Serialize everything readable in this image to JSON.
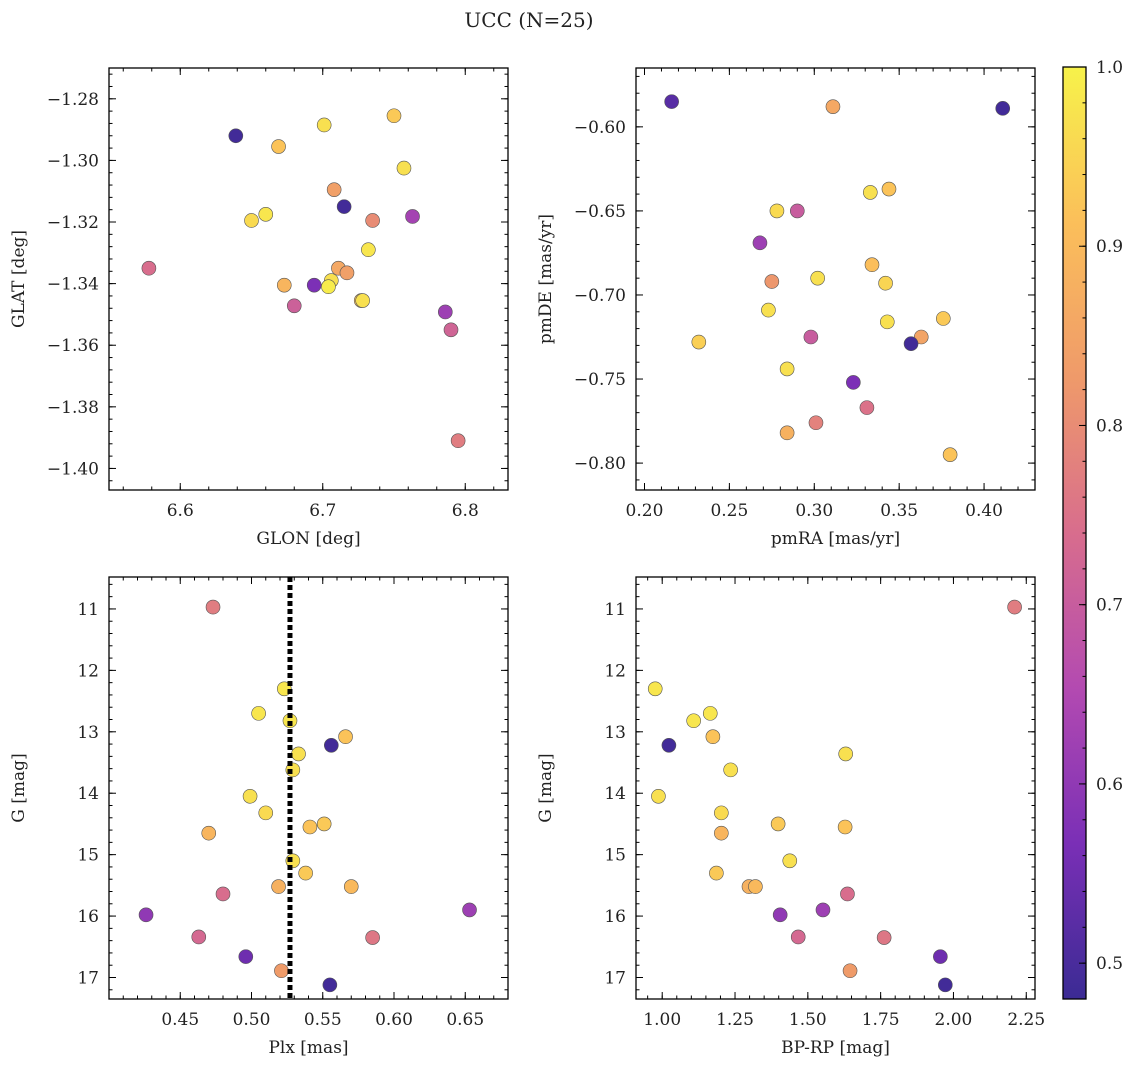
{
  "figure": {
    "title": "UCC (N=25)"
  },
  "colorbar": {
    "min": 0.48,
    "max": 1.0,
    "ticks": [
      0.5,
      0.6,
      0.7,
      0.8,
      0.9,
      1.0
    ],
    "tick_labels": [
      "0.5",
      "0.6",
      "0.7",
      "0.8",
      "0.9",
      "1.0"
    ],
    "colormap": "plasma",
    "colors": [
      "#3b2b94",
      "#7a2fb6",
      "#b34ab1",
      "#d86d8d",
      "#ef9a6a",
      "#fbbf5a",
      "#f7f24a"
    ]
  },
  "chart_data": [
    {
      "type": "scatter",
      "xlabel": "GLON [deg]",
      "ylabel": "GLAT [deg]",
      "xlim": [
        6.55,
        6.83
      ],
      "ylim": [
        -1.407,
        -1.27
      ],
      "xticks": [
        6.6,
        6.7,
        6.8
      ],
      "xtick_labels": [
        "6.6",
        "6.7",
        "6.8"
      ],
      "yticks": [
        -1.28,
        -1.3,
        -1.32,
        -1.34,
        -1.36,
        -1.38,
        -1.4
      ],
      "ytick_labels": [
        "−1.28",
        "−1.30",
        "−1.32",
        "−1.34",
        "−1.36",
        "−1.38",
        "−1.40"
      ],
      "y_inverted": false,
      "points": [
        {
          "x": 6.639,
          "y": -1.292,
          "c": 0.49
        },
        {
          "x": 6.669,
          "y": -1.2955,
          "c": 0.92
        },
        {
          "x": 6.701,
          "y": -1.2885,
          "c": 0.97
        },
        {
          "x": 6.75,
          "y": -1.2855,
          "c": 0.93
        },
        {
          "x": 6.757,
          "y": -1.3025,
          "c": 0.97
        },
        {
          "x": 6.708,
          "y": -1.3095,
          "c": 0.84
        },
        {
          "x": 6.715,
          "y": -1.315,
          "c": 0.49
        },
        {
          "x": 6.66,
          "y": -1.3175,
          "c": 0.98
        },
        {
          "x": 6.65,
          "y": -1.3195,
          "c": 0.96
        },
        {
          "x": 6.735,
          "y": -1.3195,
          "c": 0.8
        },
        {
          "x": 6.763,
          "y": -1.3182,
          "c": 0.63
        },
        {
          "x": 6.732,
          "y": -1.329,
          "c": 0.98
        },
        {
          "x": 6.578,
          "y": -1.335,
          "c": 0.74
        },
        {
          "x": 6.711,
          "y": -1.335,
          "c": 0.86
        },
        {
          "x": 6.717,
          "y": -1.3365,
          "c": 0.84
        },
        {
          "x": 6.706,
          "y": -1.339,
          "c": 0.97
        },
        {
          "x": 6.694,
          "y": -1.3405,
          "c": 0.57
        },
        {
          "x": 6.673,
          "y": -1.3405,
          "c": 0.89
        },
        {
          "x": 6.704,
          "y": -1.341,
          "c": 0.99
        },
        {
          "x": 6.727,
          "y": -1.3455,
          "c": 0.92
        },
        {
          "x": 6.728,
          "y": -1.3455,
          "c": 0.97
        },
        {
          "x": 6.68,
          "y": -1.3472,
          "c": 0.71
        },
        {
          "x": 6.786,
          "y": -1.3492,
          "c": 0.62
        },
        {
          "x": 6.79,
          "y": -1.355,
          "c": 0.72
        },
        {
          "x": 6.795,
          "y": -1.391,
          "c": 0.77
        }
      ]
    },
    {
      "type": "scatter",
      "xlabel": "pmRA [mas/yr]",
      "ylabel": "pmDE [mas/yr]",
      "xlim": [
        0.195,
        0.43
      ],
      "ylim": [
        -0.816,
        -0.565
      ],
      "xticks": [
        0.2,
        0.25,
        0.3,
        0.35,
        0.4
      ],
      "xtick_labels": [
        "0.20",
        "0.25",
        "0.30",
        "0.35",
        "0.40"
      ],
      "yticks": [
        -0.6,
        -0.65,
        -0.7,
        -0.75,
        -0.8
      ],
      "ytick_labels": [
        "−0.60",
        "−0.65",
        "−0.70",
        "−0.75",
        "−0.80"
      ],
      "y_inverted": false,
      "points": [
        {
          "x": 0.216,
          "y": -0.585,
          "c": 0.52
        },
        {
          "x": 0.311,
          "y": -0.588,
          "c": 0.86
        },
        {
          "x": 0.411,
          "y": -0.589,
          "c": 0.49
        },
        {
          "x": 0.344,
          "y": -0.637,
          "c": 0.92
        },
        {
          "x": 0.333,
          "y": -0.639,
          "c": 0.97
        },
        {
          "x": 0.278,
          "y": -0.65,
          "c": 0.96
        },
        {
          "x": 0.29,
          "y": -0.65,
          "c": 0.7
        },
        {
          "x": 0.268,
          "y": -0.669,
          "c": 0.62
        },
        {
          "x": 0.334,
          "y": -0.682,
          "c": 0.91
        },
        {
          "x": 0.302,
          "y": -0.69,
          "c": 0.97
        },
        {
          "x": 0.275,
          "y": -0.692,
          "c": 0.82
        },
        {
          "x": 0.342,
          "y": -0.693,
          "c": 0.95
        },
        {
          "x": 0.273,
          "y": -0.709,
          "c": 0.97
        },
        {
          "x": 0.376,
          "y": -0.714,
          "c": 0.93
        },
        {
          "x": 0.343,
          "y": -0.716,
          "c": 0.97
        },
        {
          "x": 0.298,
          "y": -0.725,
          "c": 0.7
        },
        {
          "x": 0.363,
          "y": -0.725,
          "c": 0.85
        },
        {
          "x": 0.232,
          "y": -0.728,
          "c": 0.94
        },
        {
          "x": 0.357,
          "y": -0.729,
          "c": 0.49
        },
        {
          "x": 0.284,
          "y": -0.744,
          "c": 0.97
        },
        {
          "x": 0.323,
          "y": -0.752,
          "c": 0.57
        },
        {
          "x": 0.331,
          "y": -0.767,
          "c": 0.75
        },
        {
          "x": 0.301,
          "y": -0.776,
          "c": 0.78
        },
        {
          "x": 0.284,
          "y": -0.782,
          "c": 0.88
        },
        {
          "x": 0.38,
          "y": -0.795,
          "c": 0.92
        }
      ]
    },
    {
      "type": "scatter",
      "xlabel": "Plx [mas]",
      "ylabel": "G [mag]",
      "xlim": [
        0.4,
        0.68
      ],
      "ylim": [
        17.35,
        10.48
      ],
      "xticks": [
        0.45,
        0.5,
        0.55,
        0.6,
        0.65
      ],
      "xtick_labels": [
        "0.45",
        "0.50",
        "0.55",
        "0.60",
        "0.65"
      ],
      "yticks": [
        11,
        12,
        13,
        14,
        15,
        16,
        17
      ],
      "ytick_labels": [
        "11",
        "12",
        "13",
        "14",
        "15",
        "16",
        "17"
      ],
      "y_inverted": true,
      "vline": {
        "x": 0.527,
        "style": "dotted",
        "color": "#000000"
      },
      "points": [
        {
          "x": 0.473,
          "y": 10.97,
          "c": 0.77
        },
        {
          "x": 0.523,
          "y": 12.3,
          "c": 0.98
        },
        {
          "x": 0.505,
          "y": 12.7,
          "c": 0.98
        },
        {
          "x": 0.527,
          "y": 12.82,
          "c": 0.98
        },
        {
          "x": 0.566,
          "y": 13.08,
          "c": 0.92
        },
        {
          "x": 0.556,
          "y": 13.22,
          "c": 0.49
        },
        {
          "x": 0.533,
          "y": 13.36,
          "c": 0.97
        },
        {
          "x": 0.529,
          "y": 13.62,
          "c": 0.97
        },
        {
          "x": 0.499,
          "y": 14.05,
          "c": 0.97
        },
        {
          "x": 0.51,
          "y": 14.32,
          "c": 0.96
        },
        {
          "x": 0.551,
          "y": 14.5,
          "c": 0.93
        },
        {
          "x": 0.541,
          "y": 14.55,
          "c": 0.92
        },
        {
          "x": 0.47,
          "y": 14.65,
          "c": 0.89
        },
        {
          "x": 0.529,
          "y": 15.1,
          "c": 0.97
        },
        {
          "x": 0.538,
          "y": 15.3,
          "c": 0.93
        },
        {
          "x": 0.519,
          "y": 15.52,
          "c": 0.88
        },
        {
          "x": 0.57,
          "y": 15.52,
          "c": 0.9
        },
        {
          "x": 0.48,
          "y": 15.64,
          "c": 0.74
        },
        {
          "x": 0.653,
          "y": 15.9,
          "c": 0.62
        },
        {
          "x": 0.426,
          "y": 15.98,
          "c": 0.6
        },
        {
          "x": 0.463,
          "y": 16.34,
          "c": 0.73
        },
        {
          "x": 0.585,
          "y": 16.35,
          "c": 0.76
        },
        {
          "x": 0.496,
          "y": 16.66,
          "c": 0.55
        },
        {
          "x": 0.521,
          "y": 16.89,
          "c": 0.83
        },
        {
          "x": 0.555,
          "y": 17.12,
          "c": 0.49
        }
      ]
    },
    {
      "type": "scatter",
      "xlabel": "BP-RP [mag]",
      "ylabel": "G [mag]",
      "xlim": [
        0.91,
        2.28
      ],
      "ylim": [
        17.35,
        10.48
      ],
      "xticks": [
        1.0,
        1.25,
        1.5,
        1.75,
        2.0,
        2.25
      ],
      "xtick_labels": [
        "1.00",
        "1.25",
        "1.50",
        "1.75",
        "2.00",
        "2.25"
      ],
      "yticks": [
        11,
        12,
        13,
        14,
        15,
        16,
        17
      ],
      "ytick_labels": [
        "11",
        "12",
        "13",
        "14",
        "15",
        "16",
        "17"
      ],
      "y_inverted": true,
      "points": [
        {
          "x": 2.21,
          "y": 10.97,
          "c": 0.77
        },
        {
          "x": 0.976,
          "y": 12.3,
          "c": 0.98
        },
        {
          "x": 1.165,
          "y": 12.7,
          "c": 0.98
        },
        {
          "x": 1.108,
          "y": 12.82,
          "c": 0.98
        },
        {
          "x": 1.174,
          "y": 13.08,
          "c": 0.92
        },
        {
          "x": 1.023,
          "y": 13.22,
          "c": 0.49
        },
        {
          "x": 1.63,
          "y": 13.36,
          "c": 0.97
        },
        {
          "x": 1.235,
          "y": 13.62,
          "c": 0.97
        },
        {
          "x": 0.987,
          "y": 14.05,
          "c": 0.97
        },
        {
          "x": 1.203,
          "y": 14.32,
          "c": 0.96
        },
        {
          "x": 1.398,
          "y": 14.5,
          "c": 0.93
        },
        {
          "x": 1.628,
          "y": 14.55,
          "c": 0.92
        },
        {
          "x": 1.203,
          "y": 14.65,
          "c": 0.89
        },
        {
          "x": 1.438,
          "y": 15.1,
          "c": 0.97
        },
        {
          "x": 1.186,
          "y": 15.3,
          "c": 0.93
        },
        {
          "x": 1.298,
          "y": 15.52,
          "c": 0.88
        },
        {
          "x": 1.32,
          "y": 15.52,
          "c": 0.9
        },
        {
          "x": 1.636,
          "y": 15.64,
          "c": 0.74
        },
        {
          "x": 1.552,
          "y": 15.9,
          "c": 0.62
        },
        {
          "x": 1.405,
          "y": 15.98,
          "c": 0.6
        },
        {
          "x": 1.467,
          "y": 16.34,
          "c": 0.73
        },
        {
          "x": 1.762,
          "y": 16.35,
          "c": 0.76
        },
        {
          "x": 1.955,
          "y": 16.66,
          "c": 0.55
        },
        {
          "x": 1.645,
          "y": 16.89,
          "c": 0.83
        },
        {
          "x": 1.972,
          "y": 17.12,
          "c": 0.49
        }
      ]
    }
  ]
}
